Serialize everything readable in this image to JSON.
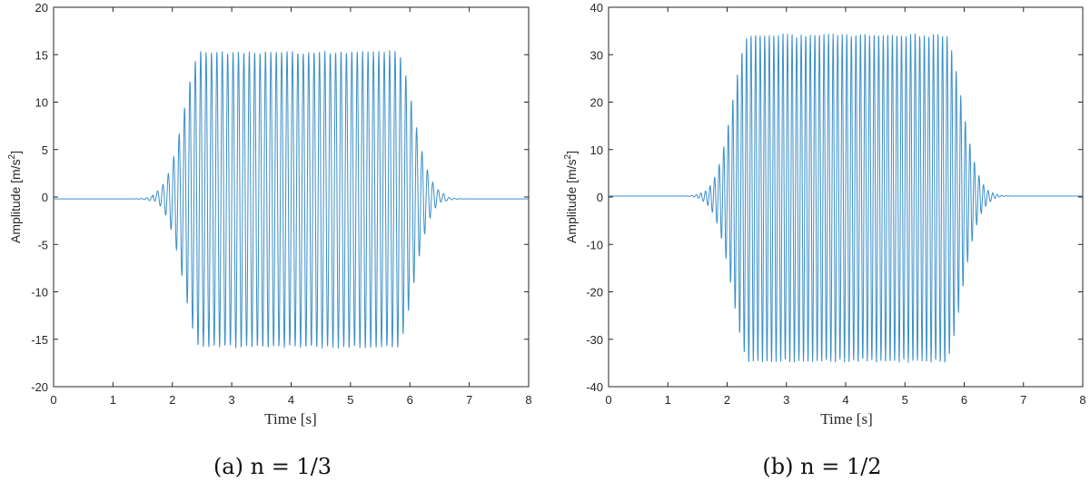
{
  "chart_data": [
    {
      "type": "line",
      "caption": "(a) n = 1/3",
      "xlabel": "Time [s]",
      "ylabel": "Amplitude [m/s",
      "ylabel_sup": "2",
      "ylabel_tail": "]",
      "xlim": [
        0,
        8
      ],
      "ylim": [
        -20,
        20
      ],
      "xticks": [
        "0",
        "1",
        "2",
        "3",
        "4",
        "5",
        "6",
        "7",
        "8"
      ],
      "yticks": [
        "-20",
        "-15",
        "-10",
        "-5",
        "0",
        "5",
        "10",
        "15",
        "20"
      ],
      "line_color": "#3b8fc9",
      "series": [
        {
          "signal": "oscillation",
          "frequency_hz": 11,
          "plateau_start_s": 2.5,
          "plateau_end_s": 5.75,
          "peak_max": 15.4,
          "peak_min": -16.0,
          "rise_time_s": 1.0,
          "decay_time_s": 1.0
        }
      ]
    },
    {
      "type": "line",
      "caption": "(b) n = 1/2",
      "xlabel": "Time [s]",
      "ylabel": "Amplitude [m/s",
      "ylabel_sup": "2",
      "ylabel_tail": "]",
      "xlim": [
        0,
        8
      ],
      "ylim": [
        -40,
        40
      ],
      "xticks": [
        "0",
        "1",
        "2",
        "3",
        "4",
        "5",
        "6",
        "7",
        "8"
      ],
      "yticks": [
        "-40",
        "-30",
        "-20",
        "-10",
        "0",
        "10",
        "20",
        "30",
        "40"
      ],
      "line_color": "#3b8fc9",
      "series": [
        {
          "signal": "oscillation",
          "frequency_hz": 13,
          "plateau_start_s": 2.4,
          "plateau_end_s": 5.65,
          "peak_max": 34.5,
          "peak_min": -35.0,
          "rise_time_s": 1.0,
          "decay_time_s": 1.0
        }
      ]
    }
  ]
}
